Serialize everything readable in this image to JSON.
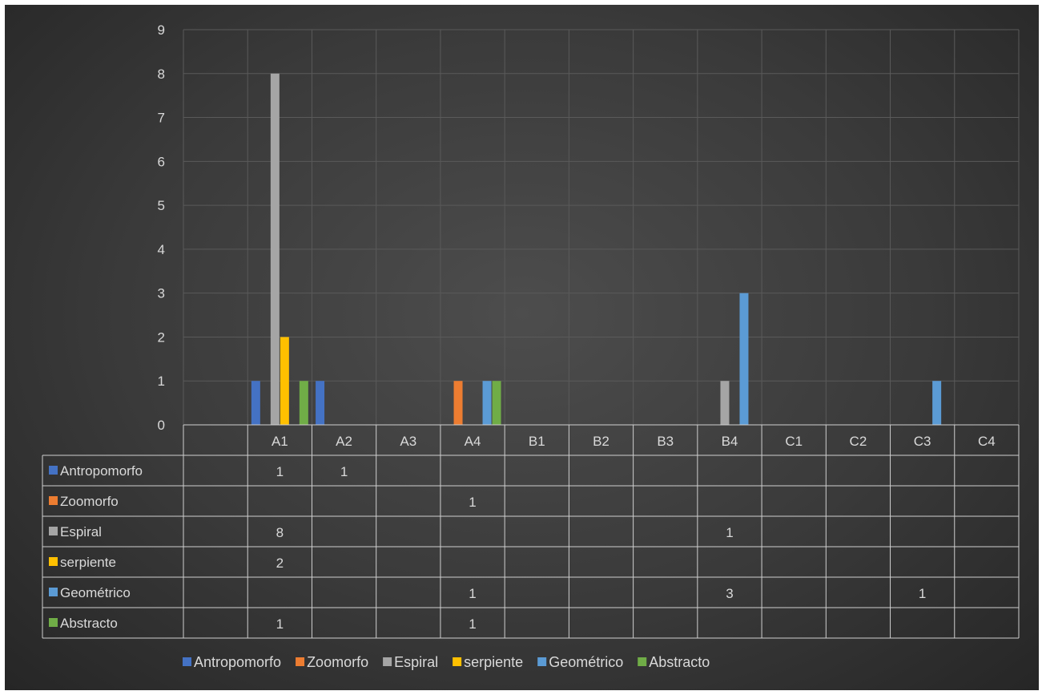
{
  "chart_data": {
    "type": "bar",
    "categories": [
      "",
      "A1",
      "A2",
      "A3",
      "A4",
      "B1",
      "B2",
      "B3",
      "B4",
      "C1",
      "C2",
      "C3",
      "C4"
    ],
    "y_ticks": [
      "0",
      "1",
      "2",
      "3",
      "4",
      "5",
      "6",
      "7",
      "8",
      "9"
    ],
    "ylim": [
      0,
      9
    ],
    "grid": true,
    "legend_position": "bottom",
    "data_table": true,
    "series": [
      {
        "name": "Antropomorfo",
        "color": "#4472c4",
        "values": [
          null,
          1,
          1,
          null,
          null,
          null,
          null,
          null,
          null,
          null,
          null,
          null,
          null
        ]
      },
      {
        "name": "Zoomorfo",
        "color": "#ed7d31",
        "values": [
          null,
          null,
          null,
          null,
          1,
          null,
          null,
          null,
          null,
          null,
          null,
          null,
          null
        ]
      },
      {
        "name": "Espiral",
        "color": "#a5a5a5",
        "values": [
          null,
          8,
          null,
          null,
          null,
          null,
          null,
          null,
          1,
          null,
          null,
          null,
          null
        ]
      },
      {
        "name": "serpiente",
        "color": "#ffc000",
        "values": [
          null,
          2,
          null,
          null,
          null,
          null,
          null,
          null,
          null,
          null,
          null,
          null,
          null
        ]
      },
      {
        "name": "Geométrico",
        "color": "#5b9bd5",
        "values": [
          null,
          null,
          null,
          null,
          1,
          null,
          null,
          null,
          3,
          null,
          null,
          1,
          null
        ]
      },
      {
        "name": "Abstracto",
        "color": "#70ad47",
        "values": [
          null,
          1,
          null,
          null,
          1,
          null,
          null,
          null,
          null,
          null,
          null,
          null,
          null
        ]
      }
    ]
  }
}
